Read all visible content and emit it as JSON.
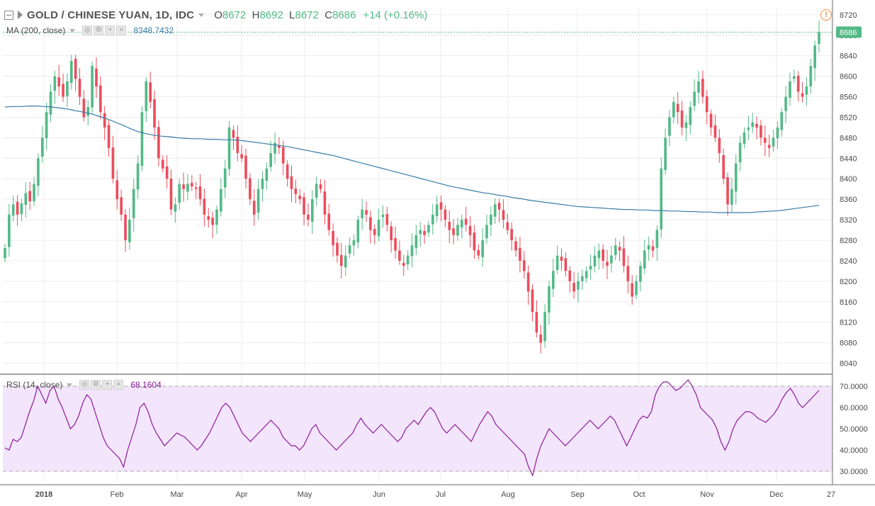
{
  "header": {
    "symbol": "GOLD / CHINESE YUAN, 1D, IDC",
    "open_label": "O",
    "open": "8672",
    "high_label": "H",
    "high": "8692",
    "low_label": "L",
    "low": "8672",
    "close_label": "C",
    "close": "8686",
    "change": "+14 (+0.16%)"
  },
  "ma_indicator": {
    "label": "MA (200, close)",
    "value": "8348.7432",
    "color": "#3a7ca5"
  },
  "rsi_indicator": {
    "label": "RSI (14, close)",
    "value": "68.1604",
    "color": "#8b1a9a"
  },
  "icons": {
    "alert": "alert-icon",
    "collapse": "collapse-icon",
    "flag": "flag-icon"
  },
  "colors": {
    "up": "#53b987",
    "down": "#eb4d5c",
    "ma": "#3a7ca5",
    "rsi": "#8b1a9a",
    "rsi_band": "#f3e5fb"
  },
  "chart_data": [
    {
      "type": "candlestick",
      "price_axis": {
        "ticks": [
          8040,
          8080,
          8120,
          8160,
          8200,
          8240,
          8280,
          8320,
          8360,
          8400,
          8440,
          8480,
          8520,
          8560,
          8600,
          8640,
          8680,
          8720
        ],
        "ylim": [
          8020,
          8735
        ]
      },
      "last_price_label": "8686",
      "x_labels": [
        "2018",
        "Feb",
        "Mar",
        "Apr",
        "May",
        "Jun",
        "Jul",
        "Aug",
        "Sep",
        "Oct",
        "Nov",
        "Dec",
        "27"
      ],
      "closes": [
        8265,
        8330,
        8350,
        8330,
        8352,
        8372,
        8356,
        8390,
        8440,
        8480,
        8530,
        8570,
        8600,
        8580,
        8560,
        8590,
        8630,
        8595,
        8560,
        8520,
        8540,
        8620,
        8580,
        8530,
        8500,
        8460,
        8400,
        8360,
        8330,
        8280,
        8320,
        8380,
        8430,
        8530,
        8590,
        8550,
        8500,
        8440,
        8420,
        8400,
        8340,
        8350,
        8390,
        8380,
        8390,
        8385,
        8380,
        8360,
        8330,
        8320,
        8310,
        8340,
        8380,
        8420,
        8500,
        8480,
        8450,
        8440,
        8400,
        8360,
        8330,
        8380,
        8400,
        8420,
        8450,
        8470,
        8460,
        8430,
        8400,
        8380,
        8370,
        8360,
        8330,
        8320,
        8360,
        8390,
        8380,
        8330,
        8300,
        8270,
        8250,
        8230,
        8250,
        8270,
        8280,
        8320,
        8340,
        8330,
        8300,
        8290,
        8320,
        8330,
        8310,
        8280,
        8260,
        8240,
        8230,
        8250,
        8270,
        8290,
        8300,
        8290,
        8310,
        8330,
        8350,
        8340,
        8320,
        8300,
        8290,
        8310,
        8320,
        8310,
        8290,
        8260,
        8250,
        8280,
        8310,
        8330,
        8350,
        8340,
        8320,
        8300,
        8280,
        8260,
        8240,
        8220,
        8180,
        8140,
        8100,
        8080,
        8140,
        8190,
        8220,
        8250,
        8240,
        8220,
        8200,
        8180,
        8200,
        8210,
        8220,
        8230,
        8250,
        8260,
        8240,
        8230,
        8250,
        8270,
        8260,
        8230,
        8200,
        8170,
        8200,
        8230,
        8260,
        8270,
        8260,
        8300,
        8420,
        8480,
        8520,
        8550,
        8530,
        8500,
        8510,
        8540,
        8570,
        8590,
        8560,
        8530,
        8500,
        8480,
        8450,
        8400,
        8350,
        8380,
        8430,
        8470,
        8490,
        8500,
        8510,
        8500,
        8480,
        8470,
        8460,
        8480,
        8500,
        8530,
        8560,
        8590,
        8600,
        8570,
        8560,
        8580,
        8620,
        8660,
        8686
      ],
      "ma_series": {
        "name": "MA (200, close)",
        "values": [
          8540,
          8541,
          8541,
          8542,
          8542,
          8541,
          8540,
          8538,
          8536,
          8533,
          8530,
          8527,
          8522,
          8517,
          8511,
          8505,
          8498,
          8492,
          8488,
          8485,
          8483,
          8482,
          8480,
          8479,
          8478,
          8478,
          8477,
          8477,
          8476,
          8476,
          8475,
          8473,
          8471,
          8469,
          8467,
          8465,
          8463,
          8460,
          8457,
          8454,
          8451,
          8448,
          8445,
          8441,
          8437,
          8433,
          8429,
          8425,
          8421,
          8417,
          8413,
          8409,
          8405,
          8401,
          8397,
          8393,
          8389,
          8385,
          8382,
          8379,
          8376,
          8373,
          8371,
          8368,
          8366,
          8363,
          8361,
          8358,
          8356,
          8354,
          8352,
          8350,
          8348,
          8346,
          8345,
          8344,
          8343,
          8342,
          8341,
          8340,
          8340,
          8339,
          8339,
          8338,
          8338,
          8337,
          8337,
          8336,
          8336,
          8335,
          8335,
          8334,
          8334,
          8334,
          8334,
          8334,
          8335,
          8336,
          8337,
          8338,
          8340,
          8342,
          8344,
          8346,
          8348
        ]
      }
    },
    {
      "type": "line",
      "title": "RSI (14, close)",
      "y_ticks": [
        30,
        40,
        50,
        60,
        70
      ],
      "y_tick_labels": [
        "30.0000",
        "40.0000",
        "50.0000",
        "60.0000",
        "70.0000"
      ],
      "ylim": [
        25,
        75
      ],
      "band": [
        30,
        70
      ],
      "series": [
        {
          "name": "RSI (14, close)",
          "values": [
            41,
            40,
            45,
            44,
            46,
            52,
            58,
            63,
            70,
            66,
            62,
            68,
            70,
            64,
            60,
            55,
            50,
            52,
            56,
            62,
            66,
            64,
            58,
            52,
            46,
            42,
            40,
            38,
            36,
            32,
            40,
            46,
            52,
            60,
            62,
            58,
            52,
            48,
            45,
            42,
            44,
            46,
            48,
            47,
            46,
            44,
            42,
            40,
            42,
            45,
            48,
            52,
            56,
            60,
            62,
            60,
            56,
            52,
            48,
            46,
            44,
            46,
            48,
            50,
            52,
            54,
            52,
            50,
            46,
            44,
            42,
            42,
            40,
            42,
            46,
            50,
            52,
            48,
            46,
            44,
            42,
            40,
            42,
            44,
            46,
            48,
            52,
            55,
            52,
            50,
            48,
            50,
            52,
            50,
            48,
            46,
            44,
            46,
            50,
            52,
            54,
            52,
            55,
            58,
            60,
            58,
            54,
            50,
            48,
            50,
            52,
            50,
            48,
            46,
            44,
            48,
            52,
            55,
            58,
            56,
            52,
            50,
            48,
            46,
            44,
            42,
            40,
            38,
            32,
            28,
            36,
            42,
            46,
            50,
            48,
            46,
            44,
            42,
            44,
            46,
            48,
            50,
            52,
            54,
            52,
            50,
            52,
            54,
            56,
            54,
            50,
            46,
            42,
            46,
            50,
            54,
            56,
            55,
            58,
            66,
            70,
            72,
            72,
            70,
            68,
            69,
            71,
            73,
            70,
            66,
            60,
            58,
            56,
            54,
            50,
            44,
            40,
            44,
            50,
            54,
            56,
            58,
            58,
            57,
            55,
            54,
            53,
            55,
            57,
            60,
            64,
            67,
            69,
            66,
            62,
            60,
            62,
            64,
            66,
            68
          ]
        }
      ]
    }
  ]
}
